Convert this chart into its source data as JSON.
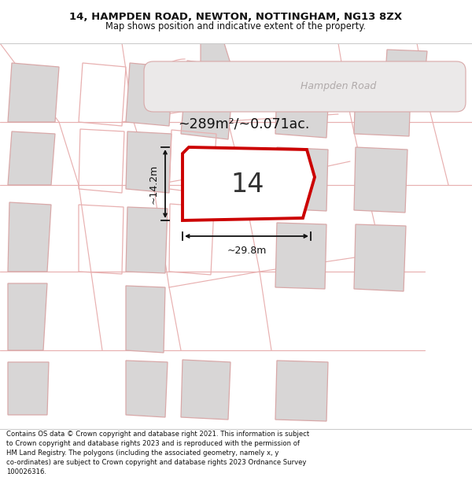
{
  "title_line1": "14, HAMPDEN ROAD, NEWTON, NOTTINGHAM, NG13 8ZX",
  "title_line2": "Map shows position and indicative extent of the property.",
  "footer": "Contains OS data © Crown copyright and database right 2021. This information is subject to Crown copyright and database rights 2023 and is reproduced with the permission of HM Land Registry. The polygons (including the associated geometry, namely x, y co-ordinates) are subject to Crown copyright and database rights 2023 Ordnance Survey 100026316.",
  "area_text": "~289m²/~0.071ac.",
  "width_label": "~29.8m",
  "height_label": "~14.2m",
  "number_label": "14",
  "road_label": "Hampden Road",
  "map_bg": "#f7f5f5",
  "building_fill": "#d8d6d6",
  "building_stroke": "#d8a8a8",
  "road_band_fill": "#ebe9e9",
  "road_label_color": "#b0aaaa",
  "highlight_fill": "#ffffff",
  "highlight_stroke": "#cc0000",
  "pink_line": "#e8b0b0",
  "dim_color": "#111111",
  "text_color": "#222222"
}
